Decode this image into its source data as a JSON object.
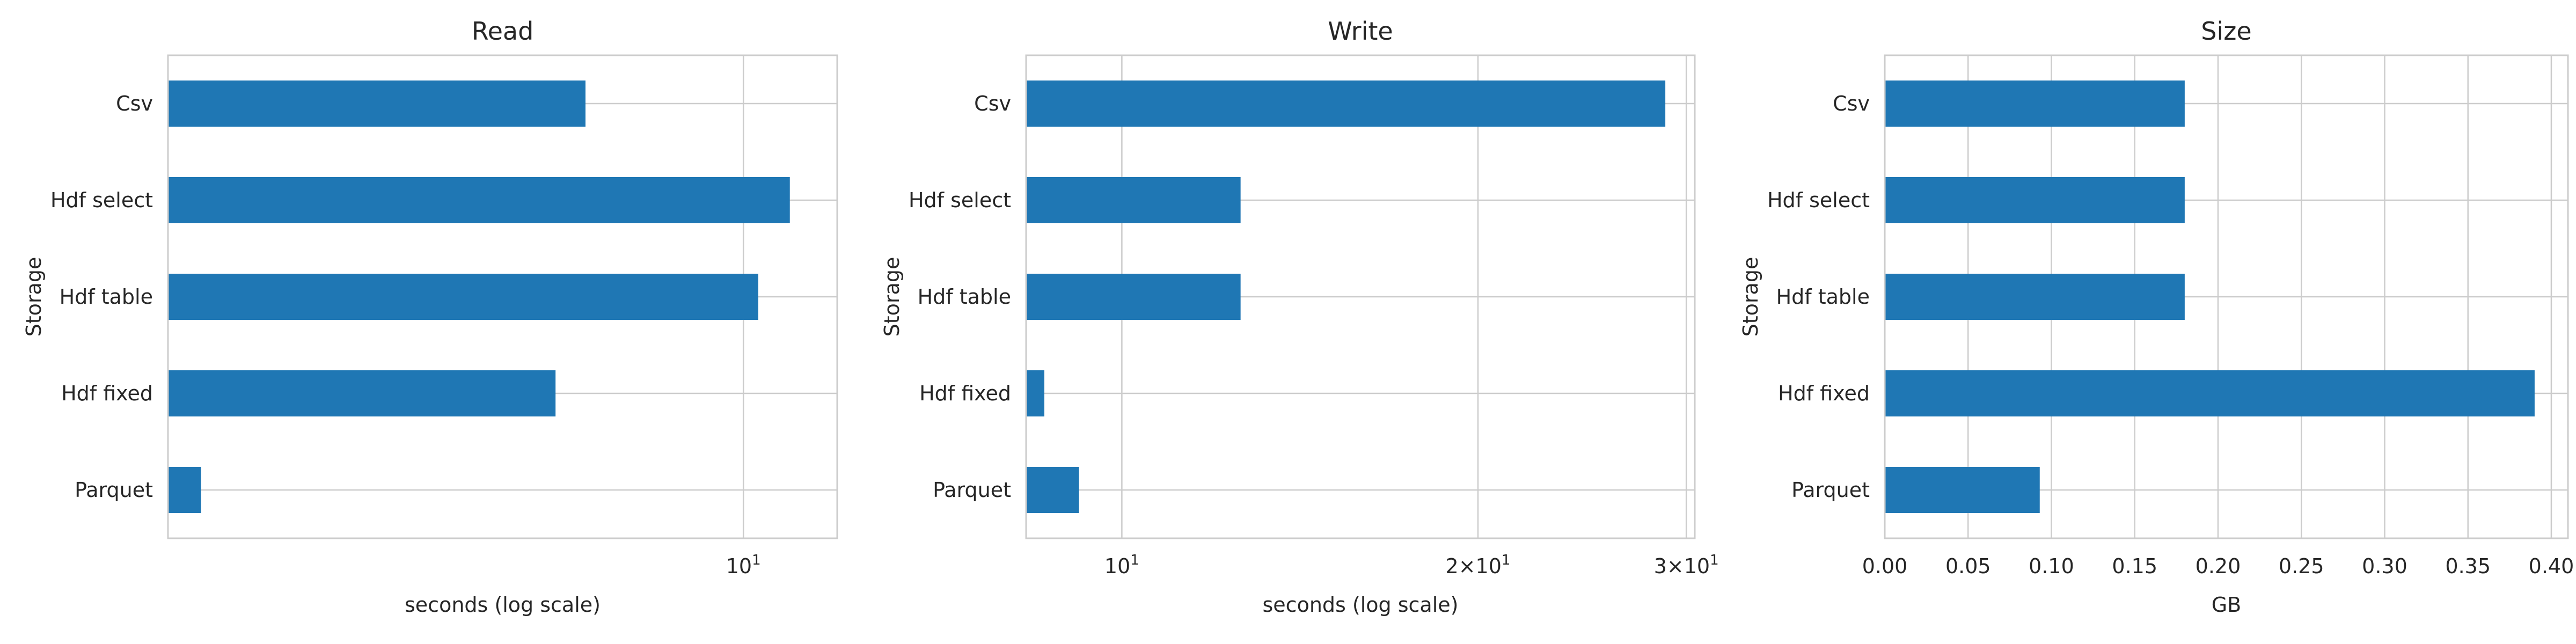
{
  "chart_data": [
    {
      "type": "bar",
      "orientation": "horizontal",
      "title": "Read",
      "ylabel": "Storage",
      "xlabel": "seconds (log scale)",
      "xscale": "log",
      "xlim": [
        2.2,
        12.8
      ],
      "xticks": [
        {
          "value": 10,
          "label": "10^1"
        }
      ],
      "categories": [
        "Csv",
        "Hdf select",
        "Hdf table",
        "Hdf fixed",
        "Parquet"
      ],
      "values": [
        6.6,
        11.3,
        10.4,
        6.1,
        2.4
      ],
      "color": "#1f77b4",
      "grid": true
    },
    {
      "type": "bar",
      "orientation": "horizontal",
      "title": "Write",
      "ylabel": "Storage",
      "xlabel": "seconds (log scale)",
      "xscale": "log",
      "xlim": [
        8.3,
        30.5
      ],
      "xticks": [
        {
          "value": 10,
          "label": "10^1"
        },
        {
          "value": 20,
          "label": "2×10^1"
        },
        {
          "value": 30,
          "label": "3×10^1"
        }
      ],
      "categories": [
        "Csv",
        "Hdf select",
        "Hdf table",
        "Hdf fixed",
        "Parquet"
      ],
      "values": [
        28.8,
        12.6,
        12.6,
        8.6,
        9.2
      ],
      "color": "#1f77b4",
      "grid": true
    },
    {
      "type": "bar",
      "orientation": "horizontal",
      "title": "Size",
      "ylabel": "Storage",
      "xlabel": "GB",
      "xscale": "linear",
      "xlim": [
        0.0,
        0.41
      ],
      "xticks": [
        {
          "value": 0.0,
          "label": "0.00"
        },
        {
          "value": 0.05,
          "label": "0.05"
        },
        {
          "value": 0.1,
          "label": "0.10"
        },
        {
          "value": 0.15,
          "label": "0.15"
        },
        {
          "value": 0.2,
          "label": "0.20"
        },
        {
          "value": 0.25,
          "label": "0.25"
        },
        {
          "value": 0.3,
          "label": "0.30"
        },
        {
          "value": 0.35,
          "label": "0.35"
        },
        {
          "value": 0.4,
          "label": "0.40"
        }
      ],
      "categories": [
        "Csv",
        "Hdf select",
        "Hdf table",
        "Hdf fixed",
        "Parquet"
      ],
      "values": [
        0.18,
        0.18,
        0.18,
        0.39,
        0.093
      ],
      "color": "#1f77b4",
      "grid": true
    }
  ]
}
